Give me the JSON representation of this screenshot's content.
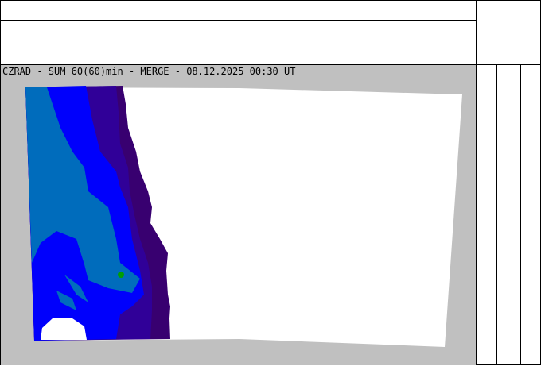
{
  "map": {
    "title": "CZRAD - SUM 60(60)min - MERGE - 08.12.2025 00:30 UT",
    "colors": {
      "background": "#c0c0c0",
      "no_precip": "#ffffff",
      "level_1": "#380070",
      "level_2": "#300098",
      "level_3": "#0000fc",
      "level_4": "#006cbc",
      "level_5": "#00a000"
    }
  }
}
